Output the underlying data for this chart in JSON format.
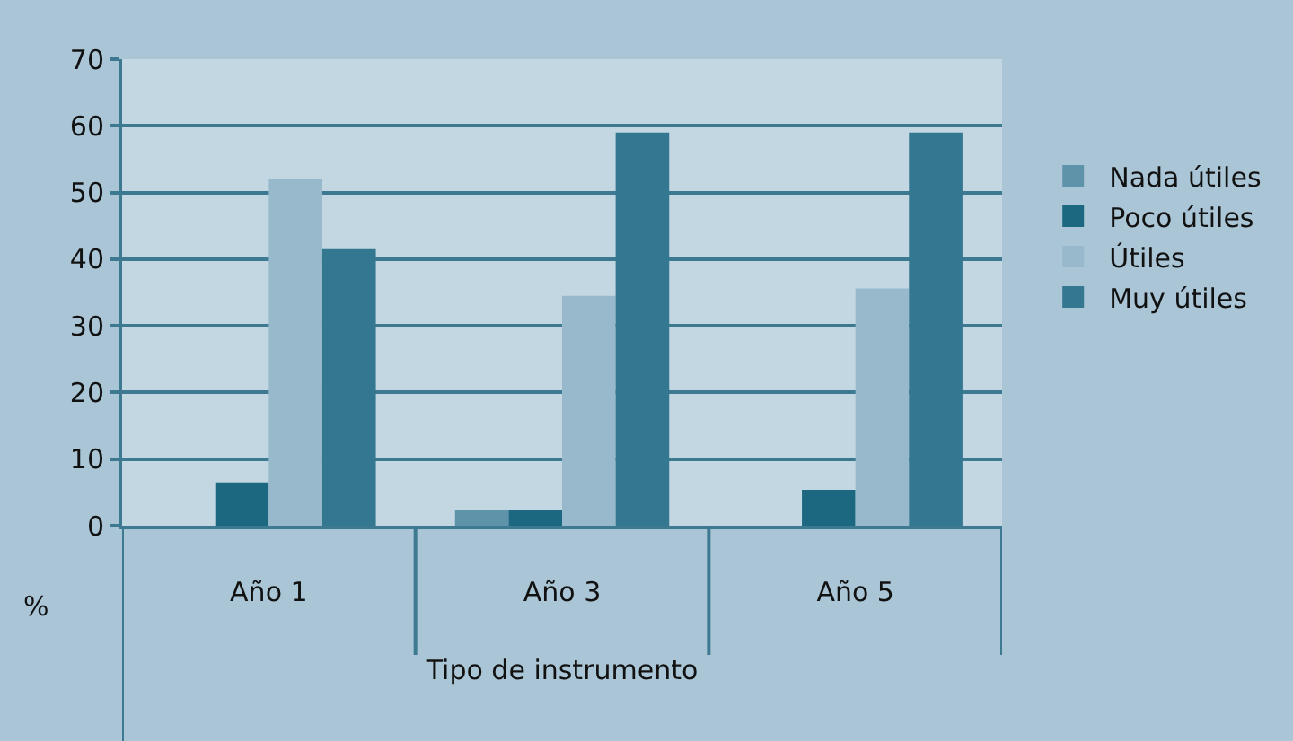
{
  "chart_data": {
    "type": "bar",
    "xlabel": "Tipo de instrumento",
    "ylabel": "%",
    "categories": [
      "Año 1",
      "Año 3",
      "Año 5"
    ],
    "series": [
      {
        "name": "Nada útiles",
        "color": "#5f93aa",
        "values": [
          0,
          2.4,
          0
        ]
      },
      {
        "name": "Poco útiles",
        "color": "#1b6880",
        "values": [
          6.5,
          2.4,
          5.4
        ]
      },
      {
        "name": "Útiles",
        "color": "#97b9cb",
        "values": [
          52,
          34.5,
          35.6
        ]
      },
      {
        "name": "Muy útiles",
        "color": "#337790",
        "values": [
          41.5,
          59,
          59
        ]
      }
    ],
    "ylim": [
      0,
      70
    ],
    "yticks": [
      0,
      10,
      20,
      30,
      40,
      50,
      60,
      70
    ],
    "grid": "y",
    "legend": "right"
  }
}
